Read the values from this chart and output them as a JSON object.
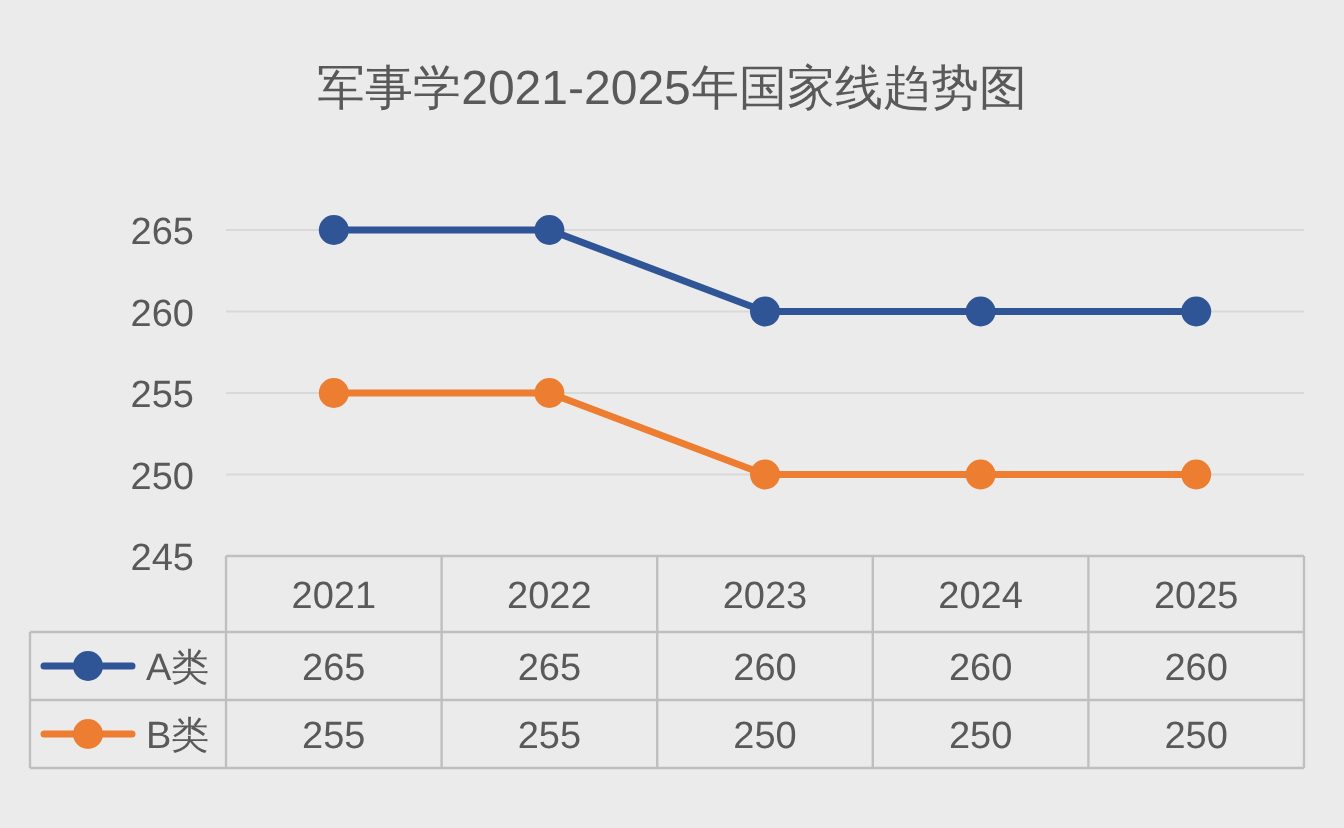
{
  "chart_data": {
    "type": "line",
    "title": "军事学2021-2025年国家线趋势图",
    "categories": [
      "2021",
      "2022",
      "2023",
      "2024",
      "2025"
    ],
    "series": [
      {
        "name": "A类",
        "color": "#2f5597",
        "values": [
          265,
          265,
          260,
          260,
          260
        ]
      },
      {
        "name": "B类",
        "color": "#ed7d31",
        "values": [
          255,
          255,
          250,
          250,
          250
        ]
      }
    ],
    "ylim": [
      245,
      265
    ],
    "yticks": [
      245,
      250,
      255,
      260,
      265
    ],
    "grid": "y",
    "marker": "circle",
    "line_style": "solid",
    "data_labels": true,
    "legend": "bottom"
  }
}
